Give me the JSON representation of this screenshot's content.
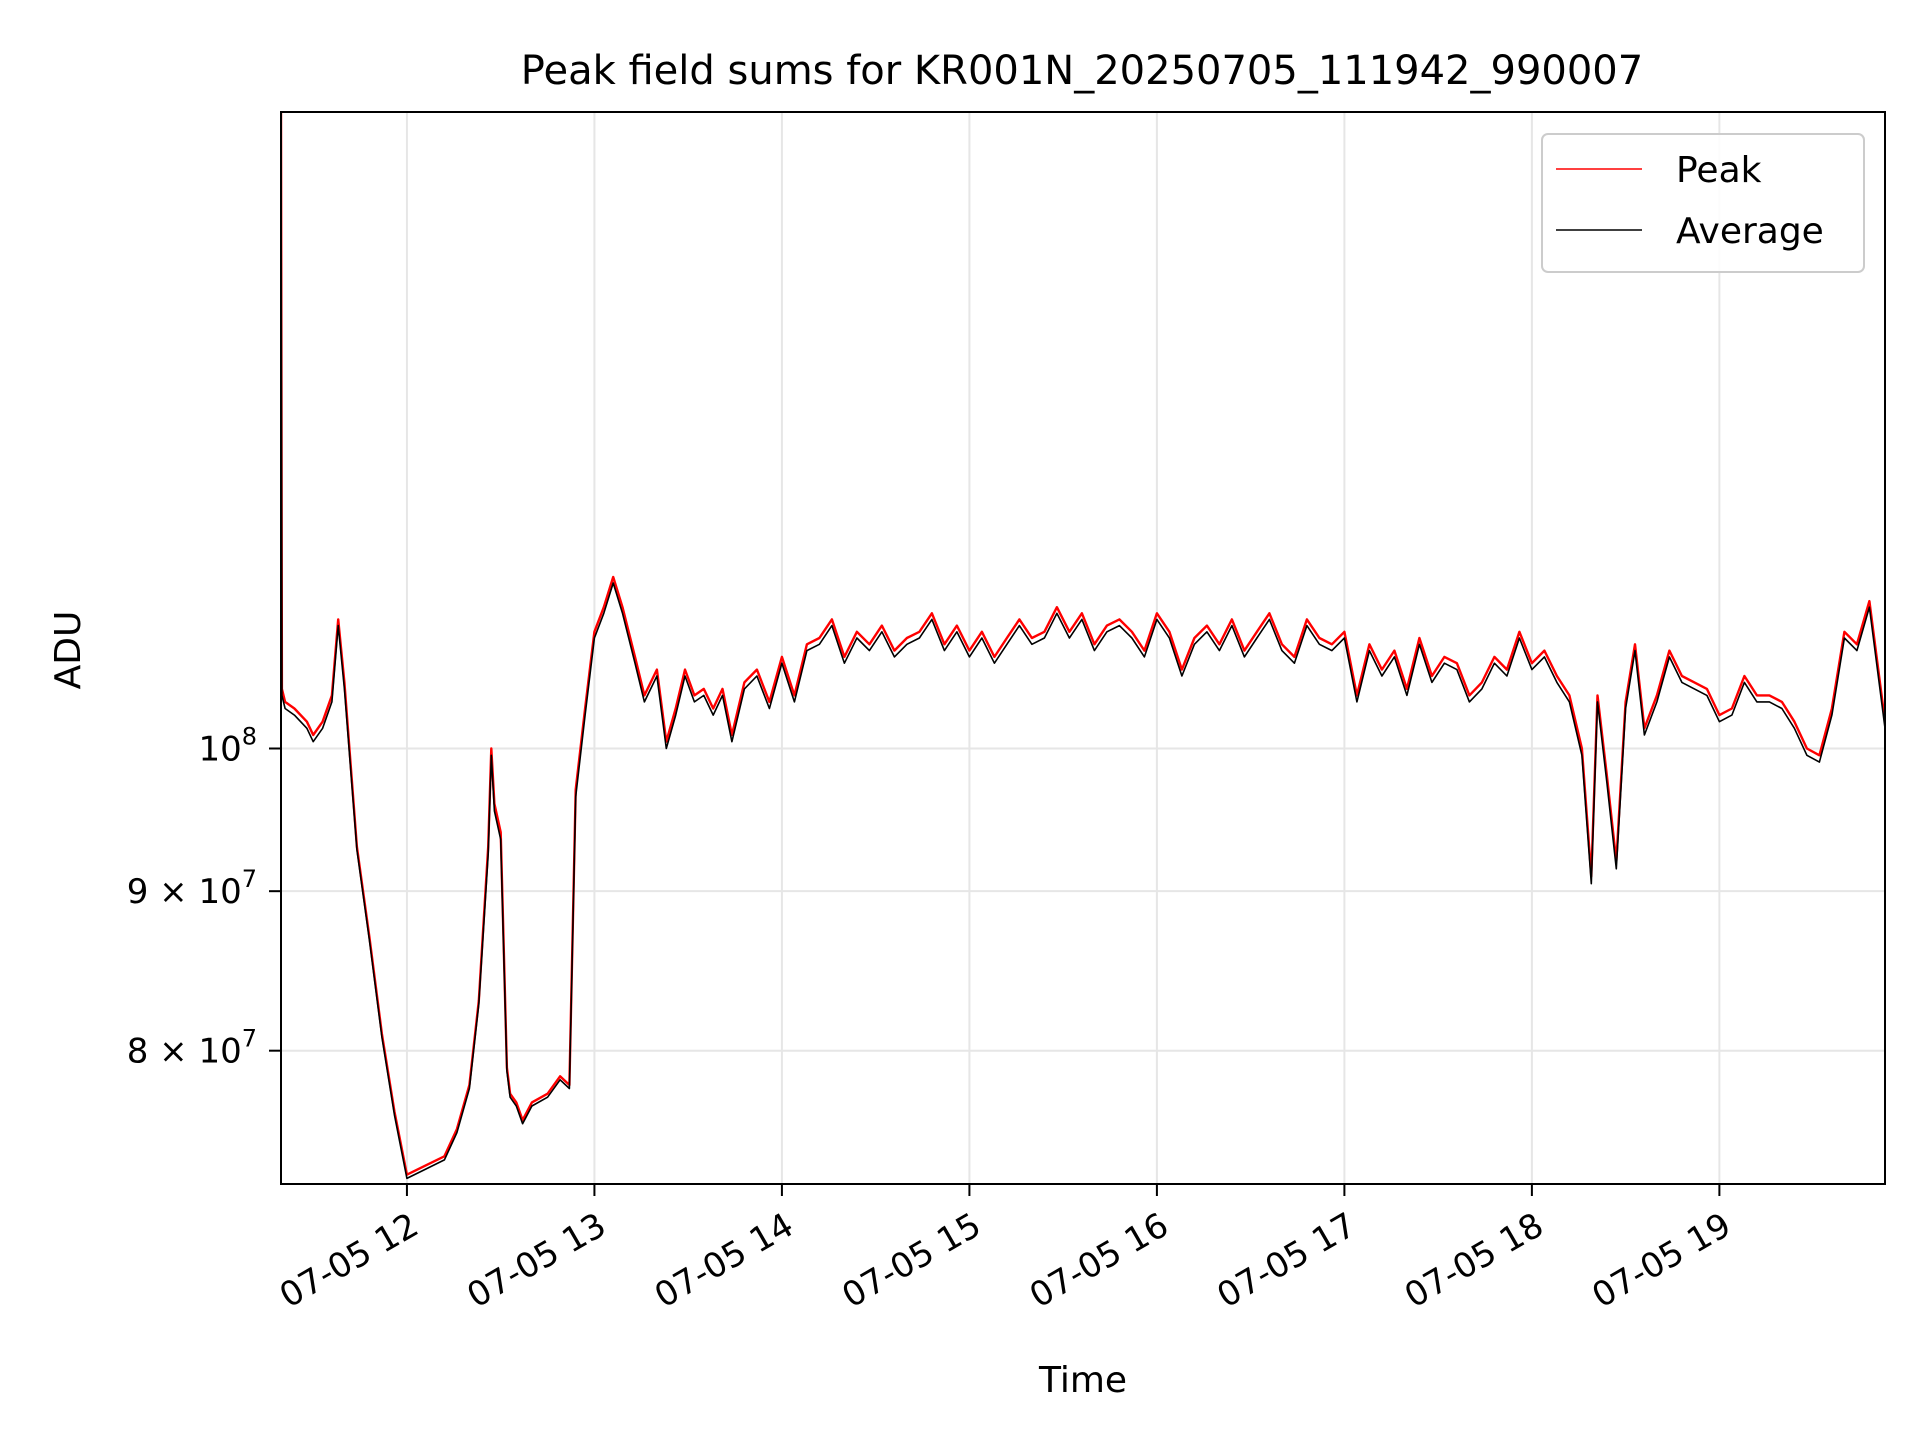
{
  "chart_data": {
    "type": "line",
    "title": "Peak field sums for KR001N_20250705_111942_990007",
    "xlabel": "Time",
    "ylabel": "ADU",
    "x_range": [
      "2025-07-05 11:19:42",
      "2025-07-05 19:53:00"
    ],
    "y_scale": "log",
    "ylim": [
      72500000,
      160000000
    ],
    "x_ticks": [
      {
        "value": "2025-07-05 12:00",
        "label": "07-05 12"
      },
      {
        "value": "2025-07-05 13:00",
        "label": "07-05 13"
      },
      {
        "value": "2025-07-05 14:00",
        "label": "07-05 14"
      },
      {
        "value": "2025-07-05 15:00",
        "label": "07-05 15"
      },
      {
        "value": "2025-07-05 16:00",
        "label": "07-05 16"
      },
      {
        "value": "2025-07-05 17:00",
        "label": "07-05 17"
      },
      {
        "value": "2025-07-05 18:00",
        "label": "07-05 18"
      },
      {
        "value": "2025-07-05 19:00",
        "label": "07-05 19"
      }
    ],
    "y_ticks": [
      {
        "value": 100000000,
        "label_base": "10",
        "label_exp": "8"
      },
      {
        "value": 90000000,
        "label_base": "9 × 10",
        "label_exp": "7"
      },
      {
        "value": 80000000,
        "label_base": "8 × 10",
        "label_exp": "7"
      }
    ],
    "grid": true,
    "legend_position": "top-right",
    "series": [
      {
        "name": "Peak",
        "color": "#ff0000",
        "x": [
          "2025-07-05 11:19:42",
          "2025-07-05 11:20:00",
          "2025-07-05 11:21:00",
          "2025-07-05 11:24:00",
          "2025-07-05 11:28:00",
          "2025-07-05 11:30:00",
          "2025-07-05 11:33:00",
          "2025-07-05 11:36:00",
          "2025-07-05 11:38:00",
          "2025-07-05 11:40:00",
          "2025-07-05 11:44:00",
          "2025-07-05 11:48:00",
          "2025-07-05 11:52:00",
          "2025-07-05 11:56:00",
          "2025-07-05 12:00:00",
          "2025-07-05 12:06:00",
          "2025-07-05 12:12:00",
          "2025-07-05 12:16:00",
          "2025-07-05 12:20:00",
          "2025-07-05 12:23:00",
          "2025-07-05 12:26:00",
          "2025-07-05 12:27:00",
          "2025-07-05 12:28:00",
          "2025-07-05 12:30:00",
          "2025-07-05 12:32:00",
          "2025-07-05 12:33:00",
          "2025-07-05 12:35:00",
          "2025-07-05 12:37:00",
          "2025-07-05 12:40:00",
          "2025-07-05 12:45:00",
          "2025-07-05 12:49:00",
          "2025-07-05 12:52:00",
          "2025-07-05 12:54:00",
          "2025-07-05 12:57:00",
          "2025-07-05 13:00:00",
          "2025-07-05 13:03:00",
          "2025-07-05 13:06:00",
          "2025-07-05 13:09:00",
          "2025-07-05 13:13:00",
          "2025-07-05 13:16:00",
          "2025-07-05 13:20:00",
          "2025-07-05 13:23:00",
          "2025-07-05 13:26:00",
          "2025-07-05 13:29:00",
          "2025-07-05 13:32:00",
          "2025-07-05 13:35:00",
          "2025-07-05 13:38:00",
          "2025-07-05 13:41:00",
          "2025-07-05 13:44:00",
          "2025-07-05 13:48:00",
          "2025-07-05 13:52:00",
          "2025-07-05 13:56:00",
          "2025-07-05 14:00:00",
          "2025-07-05 14:04:00",
          "2025-07-05 14:08:00",
          "2025-07-05 14:12:00",
          "2025-07-05 14:16:00",
          "2025-07-05 14:20:00",
          "2025-07-05 14:24:00",
          "2025-07-05 14:28:00",
          "2025-07-05 14:32:00",
          "2025-07-05 14:36:00",
          "2025-07-05 14:40:00",
          "2025-07-05 14:44:00",
          "2025-07-05 14:48:00",
          "2025-07-05 14:52:00",
          "2025-07-05 14:56:00",
          "2025-07-05 15:00:00",
          "2025-07-05 15:04:00",
          "2025-07-05 15:08:00",
          "2025-07-05 15:12:00",
          "2025-07-05 15:16:00",
          "2025-07-05 15:20:00",
          "2025-07-05 15:24:00",
          "2025-07-05 15:28:00",
          "2025-07-05 15:32:00",
          "2025-07-05 15:36:00",
          "2025-07-05 15:40:00",
          "2025-07-05 15:44:00",
          "2025-07-05 15:48:00",
          "2025-07-05 15:52:00",
          "2025-07-05 15:56:00",
          "2025-07-05 16:00:00",
          "2025-07-05 16:04:00",
          "2025-07-05 16:08:00",
          "2025-07-05 16:12:00",
          "2025-07-05 16:16:00",
          "2025-07-05 16:20:00",
          "2025-07-05 16:24:00",
          "2025-07-05 16:28:00",
          "2025-07-05 16:32:00",
          "2025-07-05 16:36:00",
          "2025-07-05 16:40:00",
          "2025-07-05 16:44:00",
          "2025-07-05 16:48:00",
          "2025-07-05 16:52:00",
          "2025-07-05 16:56:00",
          "2025-07-05 17:00:00",
          "2025-07-05 17:04:00",
          "2025-07-05 17:08:00",
          "2025-07-05 17:12:00",
          "2025-07-05 17:16:00",
          "2025-07-05 17:20:00",
          "2025-07-05 17:24:00",
          "2025-07-05 17:28:00",
          "2025-07-05 17:32:00",
          "2025-07-05 17:36:00",
          "2025-07-05 17:40:00",
          "2025-07-05 17:44:00",
          "2025-07-05 17:48:00",
          "2025-07-05 17:52:00",
          "2025-07-05 17:56:00",
          "2025-07-05 18:00:00",
          "2025-07-05 18:04:00",
          "2025-07-05 18:08:00",
          "2025-07-05 18:12:00",
          "2025-07-05 18:16:00",
          "2025-07-05 18:19:00",
          "2025-07-05 18:21:00",
          "2025-07-05 18:24:00",
          "2025-07-05 18:27:00",
          "2025-07-05 18:30:00",
          "2025-07-05 18:33:00",
          "2025-07-05 18:36:00",
          "2025-07-05 18:40:00",
          "2025-07-05 18:44:00",
          "2025-07-05 18:48:00",
          "2025-07-05 18:52:00",
          "2025-07-05 18:56:00",
          "2025-07-05 19:00:00",
          "2025-07-05 19:04:00",
          "2025-07-05 19:08:00",
          "2025-07-05 19:12:00",
          "2025-07-05 19:16:00",
          "2025-07-05 19:20:00",
          "2025-07-05 19:24:00",
          "2025-07-05 19:28:00",
          "2025-07-05 19:32:00",
          "2025-07-05 19:36:00",
          "2025-07-05 19:40:00",
          "2025-07-05 19:44:00",
          "2025-07-05 19:48:00",
          "2025-07-05 19:53:00"
        ],
        "values": [
          160000000,
          104500000,
          103500000,
          103000000,
          102000000,
          101000000,
          102000000,
          104000000,
          110000000,
          105000000,
          93000000,
          87000000,
          81000000,
          76500000,
          73000000,
          73500000,
          74000000,
          75500000,
          78000000,
          83000000,
          93000000,
          100000000,
          96000000,
          94000000,
          79000000,
          77500000,
          77000000,
          76000000,
          77000000,
          77500000,
          78500000,
          78000000,
          97000000,
          103000000,
          109000000,
          111000000,
          113500000,
          111000000,
          107000000,
          104000000,
          106000000,
          100500000,
          103000000,
          106000000,
          104000000,
          104500000,
          103000000,
          104500000,
          101000000,
          105000000,
          106000000,
          103500000,
          107000000,
          104000000,
          108000000,
          108500000,
          110000000,
          107000000,
          109000000,
          108000000,
          109500000,
          107500000,
          108500000,
          109000000,
          110500000,
          108000000,
          109500000,
          107500000,
          109000000,
          107000000,
          108500000,
          110000000,
          108500000,
          109000000,
          111000000,
          109000000,
          110500000,
          108000000,
          109500000,
          110000000,
          109000000,
          107500000,
          110500000,
          109000000,
          106000000,
          108500000,
          109500000,
          108000000,
          110000000,
          107500000,
          109000000,
          110500000,
          108000000,
          107000000,
          110000000,
          108500000,
          108000000,
          109000000,
          104000000,
          108000000,
          106000000,
          107500000,
          104500000,
          108500000,
          105500000,
          107000000,
          106500000,
          104000000,
          105000000,
          107000000,
          106000000,
          109000000,
          106500000,
          107500000,
          105500000,
          104000000,
          100000000,
          91000000,
          104000000,
          98000000,
          92000000,
          103500000,
          108000000,
          101500000,
          104000000,
          107500000,
          105500000,
          105000000,
          104500000,
          102500000,
          103000000,
          105500000,
          104000000,
          104000000,
          103500000,
          102000000,
          100000000,
          99500000,
          103000000,
          109000000,
          108000000,
          111500000,
          102000000
        ]
      },
      {
        "name": "Average",
        "color": "#000000",
        "x": [
          "2025-07-05 11:19:42",
          "2025-07-05 11:20:00",
          "2025-07-05 11:21:00",
          "2025-07-05 11:24:00",
          "2025-07-05 11:28:00",
          "2025-07-05 11:30:00",
          "2025-07-05 11:33:00",
          "2025-07-05 11:36:00",
          "2025-07-05 11:38:00",
          "2025-07-05 11:40:00",
          "2025-07-05 11:44:00",
          "2025-07-05 11:48:00",
          "2025-07-05 11:52:00",
          "2025-07-05 11:56:00",
          "2025-07-05 12:00:00",
          "2025-07-05 12:06:00",
          "2025-07-05 12:12:00",
          "2025-07-05 12:16:00",
          "2025-07-05 12:20:00",
          "2025-07-05 12:23:00",
          "2025-07-05 12:26:00",
          "2025-07-05 12:27:00",
          "2025-07-05 12:28:00",
          "2025-07-05 12:30:00",
          "2025-07-05 12:32:00",
          "2025-07-05 12:33:00",
          "2025-07-05 12:35:00",
          "2025-07-05 12:37:00",
          "2025-07-05 12:40:00",
          "2025-07-05 12:45:00",
          "2025-07-05 12:49:00",
          "2025-07-05 12:52:00",
          "2025-07-05 12:54:00",
          "2025-07-05 12:57:00",
          "2025-07-05 13:00:00",
          "2025-07-05 13:03:00",
          "2025-07-05 13:06:00",
          "2025-07-05 13:09:00",
          "2025-07-05 13:13:00",
          "2025-07-05 13:16:00",
          "2025-07-05 13:20:00",
          "2025-07-05 13:23:00",
          "2025-07-05 13:26:00",
          "2025-07-05 13:29:00",
          "2025-07-05 13:32:00",
          "2025-07-05 13:35:00",
          "2025-07-05 13:38:00",
          "2025-07-05 13:41:00",
          "2025-07-05 13:44:00",
          "2025-07-05 13:48:00",
          "2025-07-05 13:52:00",
          "2025-07-05 13:56:00",
          "2025-07-05 14:00:00",
          "2025-07-05 14:04:00",
          "2025-07-05 14:08:00",
          "2025-07-05 14:12:00",
          "2025-07-05 14:16:00",
          "2025-07-05 14:20:00",
          "2025-07-05 14:24:00",
          "2025-07-05 14:28:00",
          "2025-07-05 14:32:00",
          "2025-07-05 14:36:00",
          "2025-07-05 14:40:00",
          "2025-07-05 14:44:00",
          "2025-07-05 14:48:00",
          "2025-07-05 14:52:00",
          "2025-07-05 14:56:00",
          "2025-07-05 15:00:00",
          "2025-07-05 15:04:00",
          "2025-07-05 15:08:00",
          "2025-07-05 15:12:00",
          "2025-07-05 15:16:00",
          "2025-07-05 15:20:00",
          "2025-07-05 15:24:00",
          "2025-07-05 15:28:00",
          "2025-07-05 15:32:00",
          "2025-07-05 15:36:00",
          "2025-07-05 15:40:00",
          "2025-07-05 15:44:00",
          "2025-07-05 15:48:00",
          "2025-07-05 15:52:00",
          "2025-07-05 15:56:00",
          "2025-07-05 16:00:00",
          "2025-07-05 16:04:00",
          "2025-07-05 16:08:00",
          "2025-07-05 16:12:00",
          "2025-07-05 16:16:00",
          "2025-07-05 16:20:00",
          "2025-07-05 16:24:00",
          "2025-07-05 16:28:00",
          "2025-07-05 16:32:00",
          "2025-07-05 16:36:00",
          "2025-07-05 16:40:00",
          "2025-07-05 16:44:00",
          "2025-07-05 16:48:00",
          "2025-07-05 16:52:00",
          "2025-07-05 16:56:00",
          "2025-07-05 17:00:00",
          "2025-07-05 17:04:00",
          "2025-07-05 17:08:00",
          "2025-07-05 17:12:00",
          "2025-07-05 17:16:00",
          "2025-07-05 17:20:00",
          "2025-07-05 17:24:00",
          "2025-07-05 17:28:00",
          "2025-07-05 17:32:00",
          "2025-07-05 17:36:00",
          "2025-07-05 17:40:00",
          "2025-07-05 17:44:00",
          "2025-07-05 17:48:00",
          "2025-07-05 17:52:00",
          "2025-07-05 17:56:00",
          "2025-07-05 18:00:00",
          "2025-07-05 18:04:00",
          "2025-07-05 18:08:00",
          "2025-07-05 18:12:00",
          "2025-07-05 18:16:00",
          "2025-07-05 18:19:00",
          "2025-07-05 18:21:00",
          "2025-07-05 18:24:00",
          "2025-07-05 18:27:00",
          "2025-07-05 18:30:00",
          "2025-07-05 18:33:00",
          "2025-07-05 18:36:00",
          "2025-07-05 18:40:00",
          "2025-07-05 18:44:00",
          "2025-07-05 18:48:00",
          "2025-07-05 18:52:00",
          "2025-07-05 18:56:00",
          "2025-07-05 19:00:00",
          "2025-07-05 19:04:00",
          "2025-07-05 19:08:00",
          "2025-07-05 19:12:00",
          "2025-07-05 19:16:00",
          "2025-07-05 19:20:00",
          "2025-07-05 19:24:00",
          "2025-07-05 19:28:00",
          "2025-07-05 19:32:00",
          "2025-07-05 19:36:00",
          "2025-07-05 19:40:00",
          "2025-07-05 19:44:00",
          "2025-07-05 19:48:00",
          "2025-07-05 19:53:00"
        ],
        "values": [
          160000000,
          104000000,
          103000000,
          102500000,
          101500000,
          100500000,
          101500000,
          103500000,
          109500000,
          104500000,
          92800000,
          86800000,
          80800000,
          76300000,
          72800000,
          73300000,
          73800000,
          75300000,
          77800000,
          82800000,
          92500000,
          99500000,
          95500000,
          93500000,
          78800000,
          77300000,
          76800000,
          75800000,
          76800000,
          77300000,
          78300000,
          77800000,
          96500000,
          102500000,
          108500000,
          110500000,
          113000000,
          110500000,
          106500000,
          103500000,
          105500000,
          100000000,
          102500000,
          105500000,
          103500000,
          104000000,
          102500000,
          104000000,
          100500000,
          104500000,
          105500000,
          103000000,
          106500000,
          103500000,
          107500000,
          108000000,
          109500000,
          106500000,
          108500000,
          107500000,
          109000000,
          107000000,
          108000000,
          108500000,
          110000000,
          107500000,
          109000000,
          107000000,
          108500000,
          106500000,
          108000000,
          109500000,
          108000000,
          108500000,
          110500000,
          108500000,
          110000000,
          107500000,
          109000000,
          109500000,
          108500000,
          107000000,
          110000000,
          108500000,
          105500000,
          108000000,
          109000000,
          107500000,
          109500000,
          107000000,
          108500000,
          110000000,
          107500000,
          106500000,
          109500000,
          108000000,
          107500000,
          108500000,
          103500000,
          107500000,
          105500000,
          107000000,
          104000000,
          108000000,
          105000000,
          106500000,
          106000000,
          103500000,
          104500000,
          106500000,
          105500000,
          108500000,
          106000000,
          107000000,
          105000000,
          103500000,
          99500000,
          90500000,
          103500000,
          97500000,
          91500000,
          103000000,
          107500000,
          101000000,
          103500000,
          107000000,
          105000000,
          104500000,
          104000000,
          102000000,
          102500000,
          105000000,
          103500000,
          103500000,
          103000000,
          101500000,
          99500000,
          99000000,
          102500000,
          108500000,
          107500000,
          111000000,
          101500000
        ]
      }
    ]
  }
}
